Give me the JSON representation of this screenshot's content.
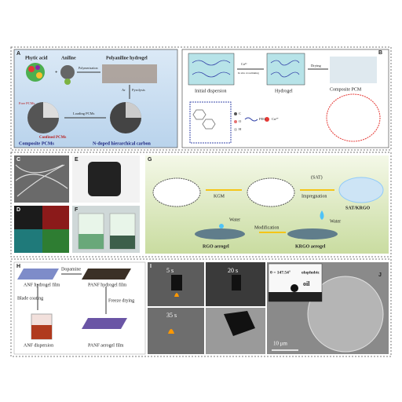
{
  "panels": {
    "A": {
      "label": "A",
      "phytic": "Phytic acid",
      "aniline": "Aniline",
      "hydrogel": "Polyaniline hydrogel",
      "polymerization": "Polymerization",
      "loading": "Loading PCMs",
      "ar": "Ar",
      "pyrolysis": "Pyrolysis",
      "free": "Free PCMs",
      "confined": "Confined PCMs",
      "composite": "Composite PCMs",
      "carbon": "N-doped hierarchical carbon"
    },
    "B": {
      "label": "B",
      "initial": "Initial dispersion",
      "cu": "Cu²⁺",
      "crosslink": "In situ crosslinking",
      "hydrogel": "Hydrogel",
      "drying": "Drying",
      "composite": "Composite PCM",
      "c": "C",
      "o": "O",
      "h": "H",
      "peg": "PEG",
      "cu_legend": "Cu²⁺"
    },
    "C": {
      "label": "C"
    },
    "D": {
      "label": "D"
    },
    "E": {
      "label": "E"
    },
    "F": {
      "label": "F"
    },
    "G": {
      "label": "G",
      "kgm": "KGM",
      "sat": "(SAT)",
      "impregnation": "Impregnation",
      "satkrgo": "SAT/KRGO",
      "water1": "Water",
      "water2": "Water",
      "modification": "Modification",
      "rgo": "RGO aerogel",
      "krgo": "KRGO aerogel"
    },
    "H": {
      "label": "H",
      "anf_film": "ANF hydrogel film",
      "dopamine": "Dopamine",
      "panf_film": "PANF hydrogel film",
      "blade": "Blade coating",
      "freeze": "Freeze drying",
      "anf_disp": "ANF dispersion",
      "panf_aero": "PANF aerogel film"
    },
    "I": {
      "label": "I",
      "t1": "5 s",
      "t2": "20 s",
      "t3": "35 s"
    },
    "J": {
      "label": "J",
      "angle": "θ = 147.54°",
      "olo": "olophobic",
      "oil": "oil",
      "scale": "10 μm"
    }
  }
}
